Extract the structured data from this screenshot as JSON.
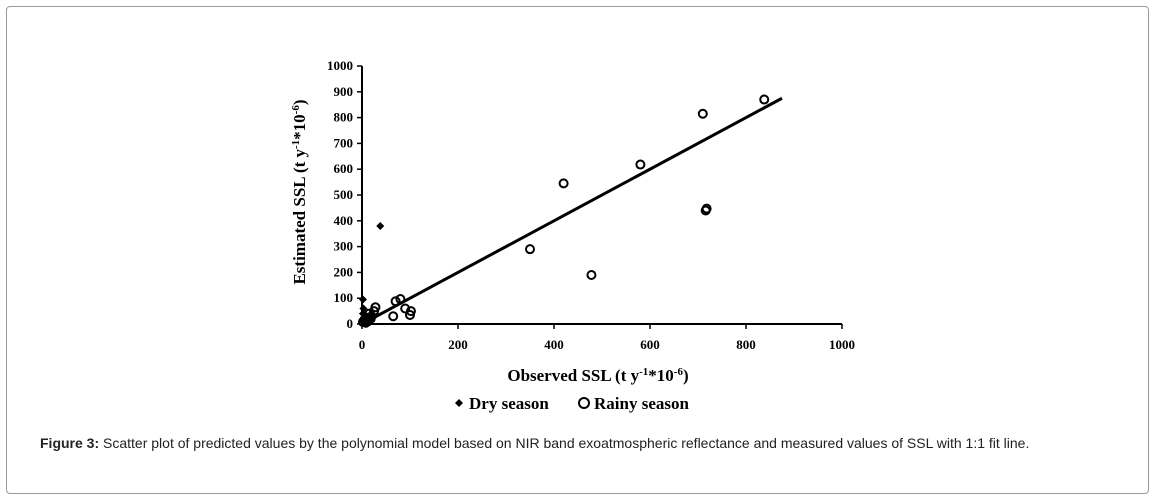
{
  "caption": {
    "label": "Figure 3:",
    "text": "Scatter plot of predicted values by the polynomial model based on NIR band exoatmospheric reflectance and measured values of SSL with 1:1 fit line."
  },
  "chart_data": {
    "type": "scatter",
    "xlabel": {
      "main": "Observed SSL (t y",
      "sup1": "-1",
      "mid": "*10",
      "sup2": "-6",
      "end": ")"
    },
    "ylabel": {
      "main": "Estimated SSL (t y",
      "sup1": "-1",
      "mid": "*10",
      "sup2": "-6",
      "end": ")"
    },
    "xlim": [
      0,
      1000
    ],
    "ylim": [
      0,
      1000
    ],
    "xticks": [
      0,
      200,
      400,
      600,
      800,
      1000
    ],
    "yticks": [
      0,
      100,
      200,
      300,
      400,
      500,
      600,
      700,
      800,
      900,
      1000
    ],
    "grid": false,
    "legend_position": "bottom",
    "series": [
      {
        "name": "Dry season",
        "marker": "diamond",
        "color": "#000000",
        "points": [
          [
            38,
            380
          ],
          [
            2,
            95
          ],
          [
            3,
            60
          ],
          [
            2,
            40
          ],
          [
            4,
            25
          ],
          [
            6,
            15
          ],
          [
            8,
            10
          ],
          [
            10,
            30
          ],
          [
            12,
            5
          ],
          [
            15,
            20
          ]
        ]
      },
      {
        "name": "Rainy season",
        "marker": "open-circle",
        "color": "#000000",
        "points": [
          [
            838,
            870
          ],
          [
            710,
            815
          ],
          [
            580,
            618
          ],
          [
            420,
            545
          ],
          [
            350,
            290
          ],
          [
            478,
            190
          ],
          [
            718,
            447
          ],
          [
            716,
            440
          ],
          [
            80,
            97
          ],
          [
            70,
            88
          ],
          [
            90,
            60
          ],
          [
            102,
            50
          ],
          [
            100,
            35
          ],
          [
            65,
            30
          ],
          [
            28,
            65
          ],
          [
            25,
            50
          ],
          [
            20,
            30
          ],
          [
            15,
            40
          ],
          [
            18,
            20
          ],
          [
            12,
            10
          ],
          [
            8,
            5
          ],
          [
            5,
            15
          ],
          [
            2,
            8
          ],
          [
            10,
            20
          ]
        ]
      }
    ],
    "fit_line": {
      "label": "1:1 fit line",
      "x": [
        0,
        875
      ],
      "y": [
        0,
        875
      ]
    }
  }
}
